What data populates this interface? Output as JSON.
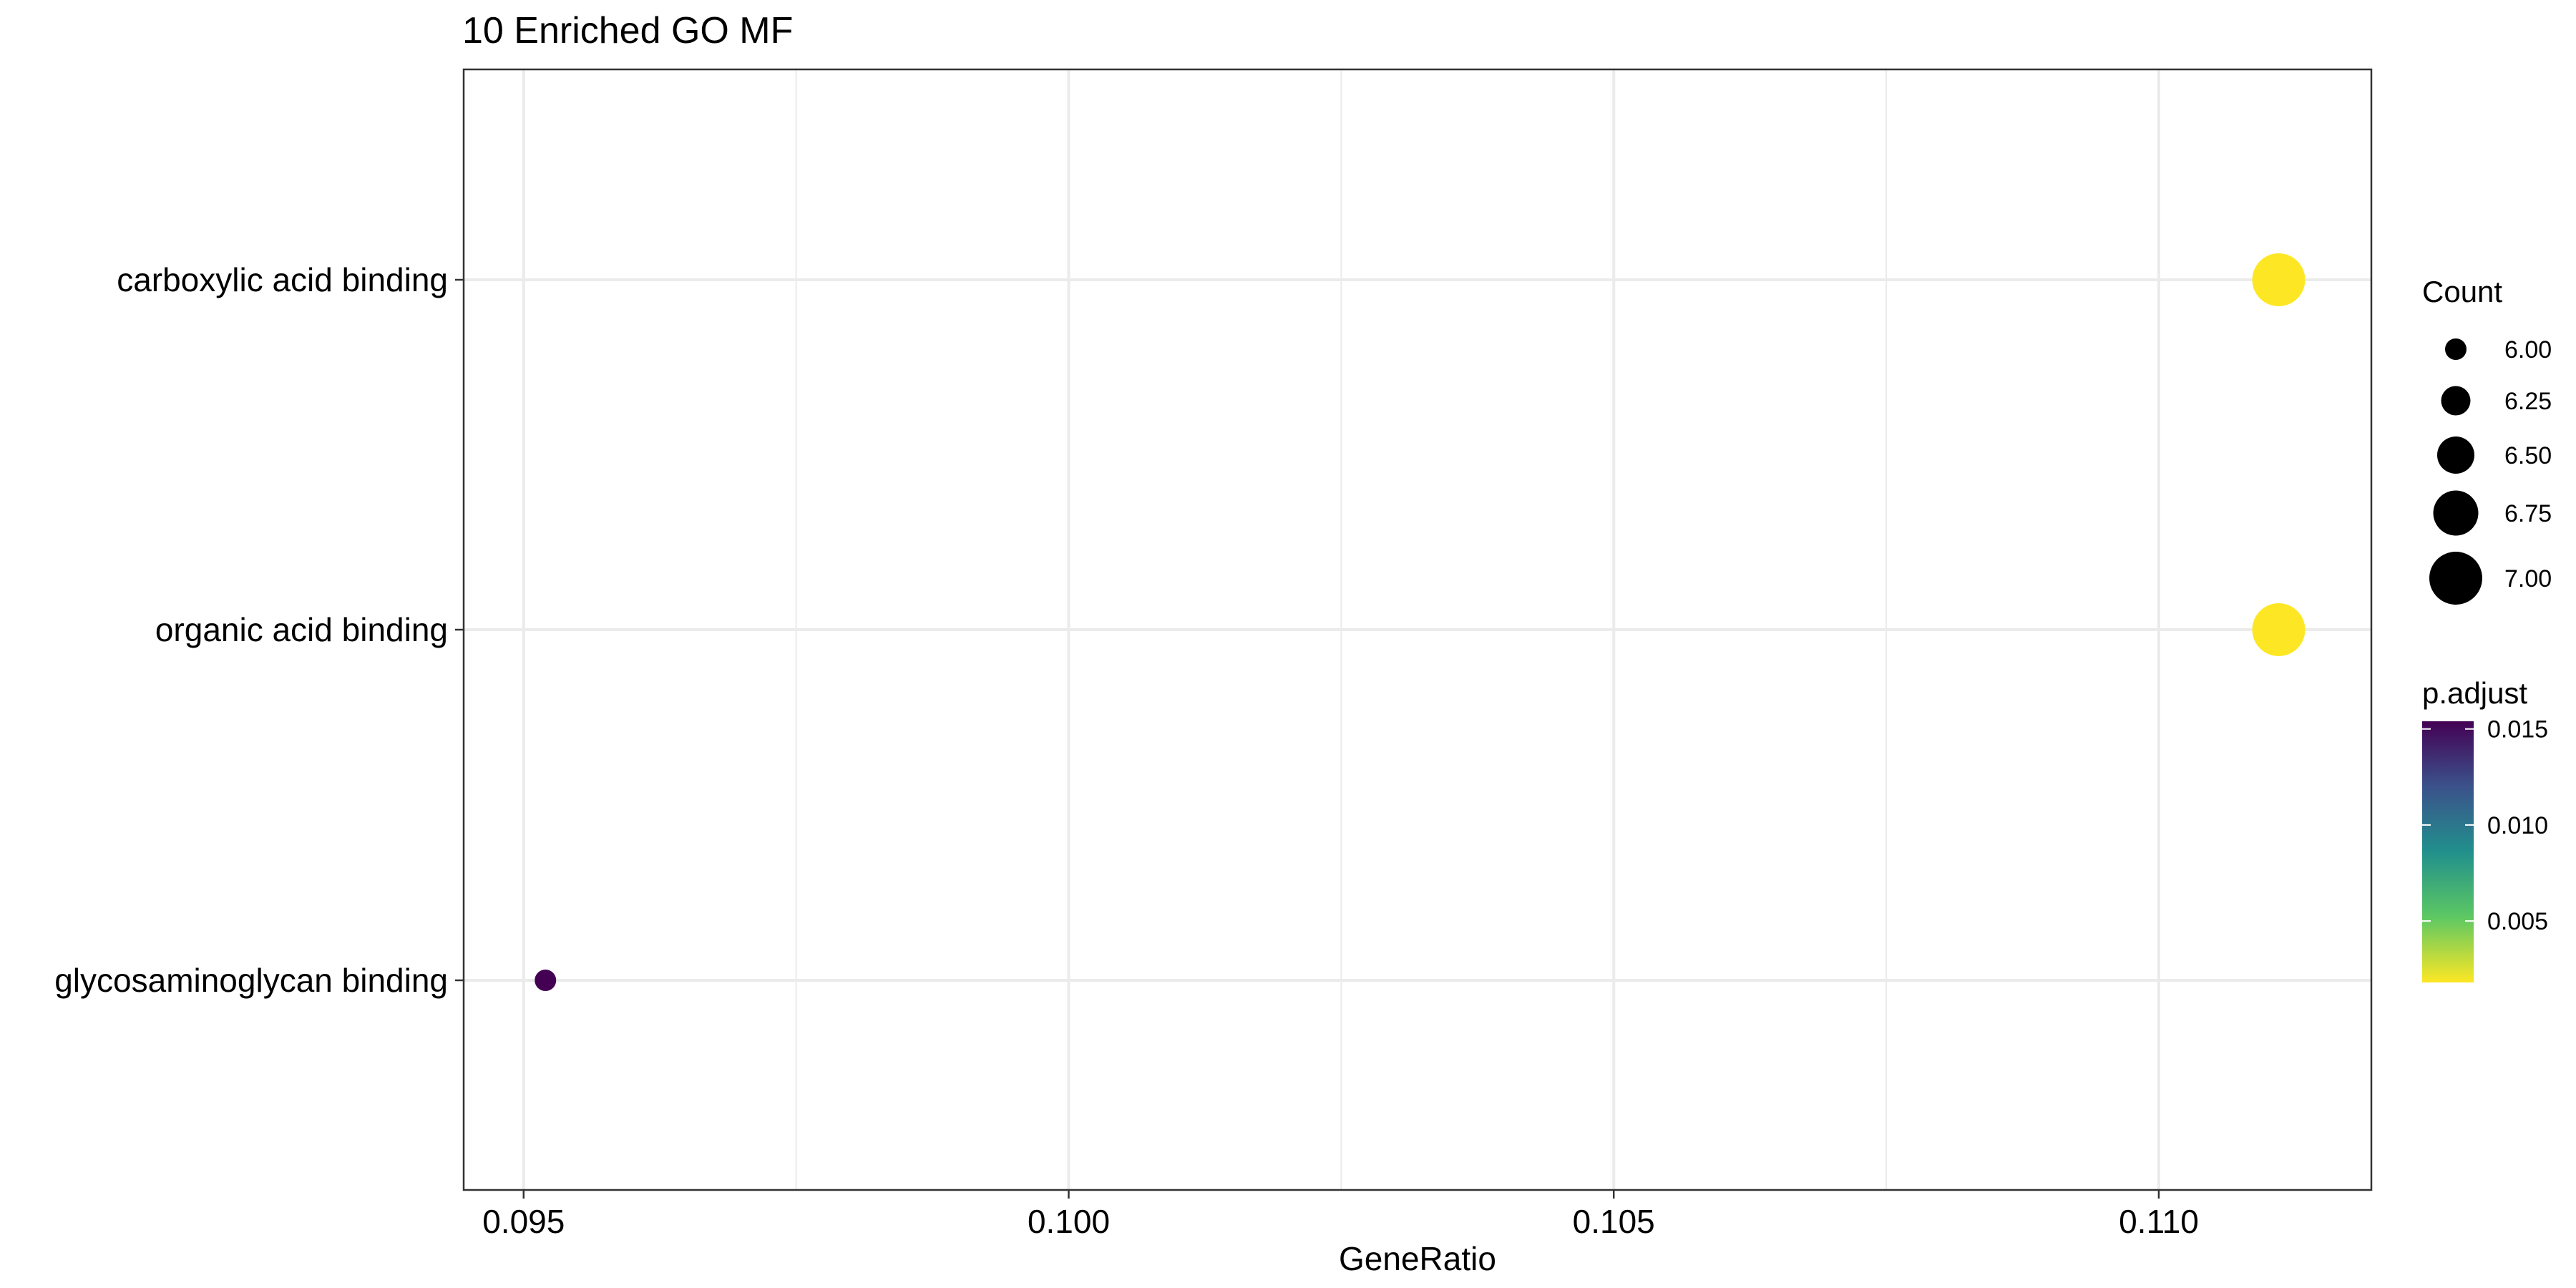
{
  "chart_data": {
    "type": "scatter",
    "title": "10 Enriched GO MF",
    "xlabel": "GeneRatio",
    "ylabel": "",
    "x_ticks": [
      0.095,
      0.1,
      0.105,
      0.11
    ],
    "x_tick_labels": [
      "0.095",
      "0.100",
      "0.105",
      "0.110"
    ],
    "xlim": [
      0.09445,
      0.11195
    ],
    "categories": [
      "carboxylic acid binding",
      "organic acid binding",
      "glycosaminoglycan binding"
    ],
    "points": [
      {
        "term": "carboxylic acid binding",
        "gene_ratio": 0.1111,
        "count": 7,
        "p_adjust": 0.0018
      },
      {
        "term": "organic acid binding",
        "gene_ratio": 0.1111,
        "count": 7,
        "p_adjust": 0.0018
      },
      {
        "term": "glycosaminoglycan binding",
        "gene_ratio": 0.0952,
        "count": 6,
        "p_adjust": 0.0154
      }
    ],
    "grid": true,
    "legend_position": "right",
    "size_legend": {
      "title": "Count",
      "values": [
        6.0,
        6.25,
        6.5,
        6.75,
        7.0
      ],
      "labels": [
        "6.00",
        "6.25",
        "6.50",
        "6.75",
        "7.00"
      ]
    },
    "color_legend": {
      "title": "p.adjust",
      "range": [
        0.0018,
        0.0154
      ],
      "ticks": [
        0.015,
        0.01,
        0.005
      ],
      "tick_labels": [
        "0.015",
        "0.010",
        "0.005"
      ],
      "palette": [
        "#440154",
        "#3B528B",
        "#21908C",
        "#5DC863",
        "#FDE725"
      ]
    },
    "colors": {
      "high_p": "#440154",
      "low_p": "#FDE725",
      "grid": "#EBEBEB",
      "panel_border": "#333333"
    }
  }
}
